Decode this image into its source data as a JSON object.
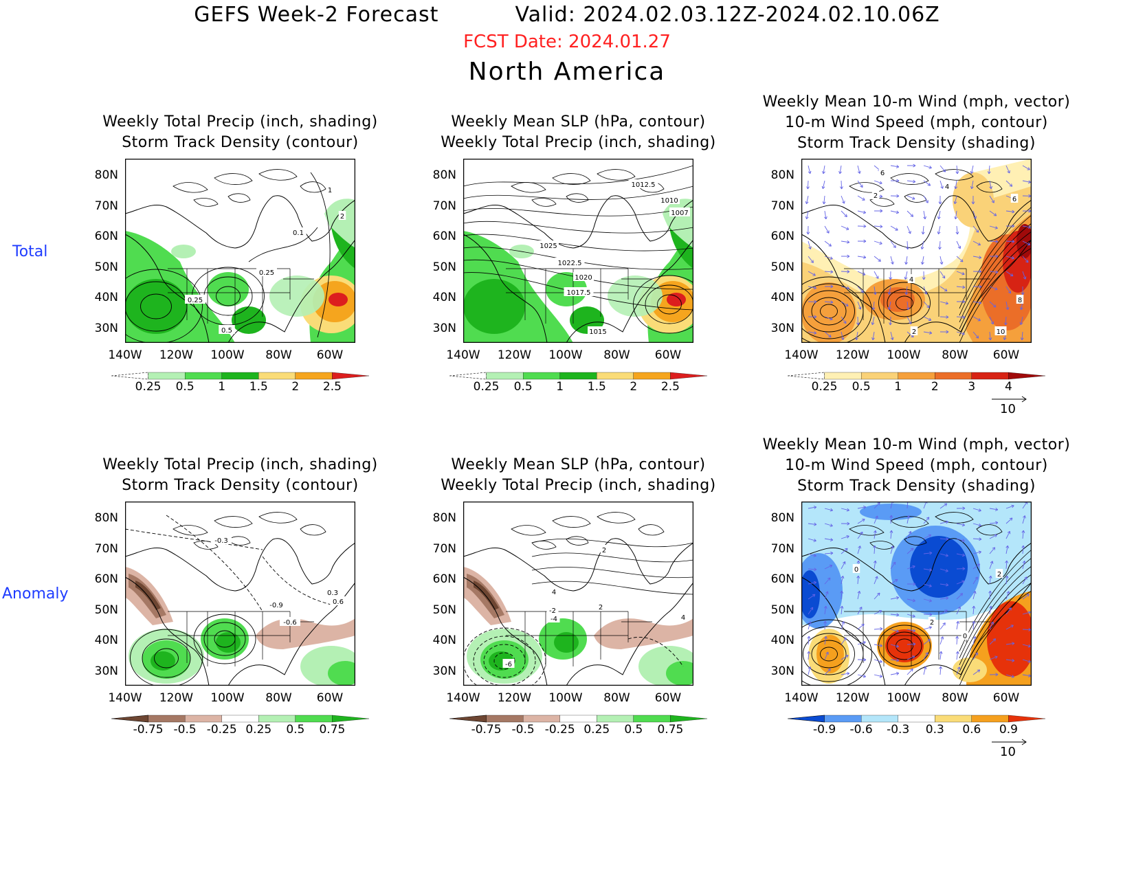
{
  "header": {
    "title": "GEFS Week-2 Forecast",
    "valid": "Valid: 2024.02.03.12Z-2024.02.10.06Z",
    "fcst_date": "FCST Date: 2024.01.27",
    "region": "North America"
  },
  "rows": [
    {
      "label": "Total"
    },
    {
      "label": "Anomaly"
    }
  ],
  "panels": [
    {
      "title_lines": [
        "Weekly Total Precip (inch, shading)",
        "Storm Track Density (contour)"
      ],
      "contour_labels": [
        "1",
        "2",
        "0.1",
        "0.25",
        "0.25",
        "0.5"
      ],
      "colorbar": [
        "0.25",
        "0.5",
        "1",
        "1.5",
        "2",
        "2.5"
      ]
    },
    {
      "title_lines": [
        "Weekly Mean SLP (hPa, contour)",
        "Weekly Total Precip (inch, shading)"
      ],
      "contour_labels": [
        "1012.5",
        "1010",
        "1007",
        "1025",
        "1022.5",
        "1020",
        "1017.5",
        "1015"
      ],
      "colorbar": [
        "0.25",
        "0.5",
        "1",
        "1.5",
        "2",
        "2.5"
      ]
    },
    {
      "title_lines": [
        "Weekly Mean 10-m Wind (mph, vector)",
        "10-m Wind Speed (mph, contour)",
        "Storm Track Density (shading)"
      ],
      "contour_labels": [
        "6",
        "4",
        "6",
        "2",
        "4",
        "8",
        "10",
        "2"
      ],
      "colorbar": [
        "0.25",
        "0.5",
        "1",
        "2",
        "3",
        "4"
      ],
      "vector_ref": "10"
    },
    {
      "title_lines": [
        "Weekly Total Precip (inch, shading)",
        "Storm Track Density (contour)"
      ],
      "contour_labels": [
        "-0.3",
        "-0.9",
        "-0.6",
        "0.6",
        "0.3"
      ],
      "colorbar": [
        "-0.75",
        "-0.5",
        "-0.25",
        "0.25",
        "0.5",
        "0.75"
      ]
    },
    {
      "title_lines": [
        "Weekly Mean SLP (hPa, contour)",
        "Weekly Total Precip (inch, shading)"
      ],
      "contour_labels": [
        "2",
        "4",
        "2",
        "-2",
        "-4",
        "-6",
        "4"
      ],
      "colorbar": [
        "-0.75",
        "-0.5",
        "-0.25",
        "0.25",
        "0.5",
        "0.75"
      ]
    },
    {
      "title_lines": [
        "Weekly Mean 10-m Wind (mph, vector)",
        "10-m Wind Speed (mph, contour)",
        "Storm Track Density (shading)"
      ],
      "contour_labels": [
        "0",
        "2",
        "2",
        "0"
      ],
      "colorbar": [
        "-0.9",
        "-0.6",
        "-0.3",
        "0.3",
        "0.6",
        "0.9"
      ],
      "vector_ref": "10"
    }
  ],
  "axes": {
    "lat_ticks": [
      "80N",
      "70N",
      "60N",
      "50N",
      "40N",
      "30N"
    ],
    "lon_ticks": [
      "140W",
      "120W",
      "100W",
      "80W",
      "60W"
    ]
  },
  "colors": {
    "precip_total": [
      "#b4f0b4",
      "#50dc50",
      "#1eb41e",
      "#fadc78",
      "#f5a51e",
      "#dc1e1e"
    ],
    "precip_anom_neg": [
      "#6e4632",
      "#a57864",
      "#dcb4a5"
    ],
    "precip_anom_pos": [
      "#b4f0b4",
      "#50dc50",
      "#1eb41e"
    ],
    "storm_total": [
      "#fff0b4",
      "#fad278",
      "#f5a03c",
      "#eb6e28",
      "#d72314",
      "#a00a0a"
    ],
    "storm_anom_neg": [
      "#0a4bd2",
      "#5a9bf5",
      "#b4e6fa"
    ],
    "storm_anom_pos": [
      "#fadc78",
      "#f5a01e",
      "#e6320a"
    ],
    "vector": "#6464e6",
    "row_label": "#1f3cff",
    "fcst_date": "#ff2020"
  }
}
